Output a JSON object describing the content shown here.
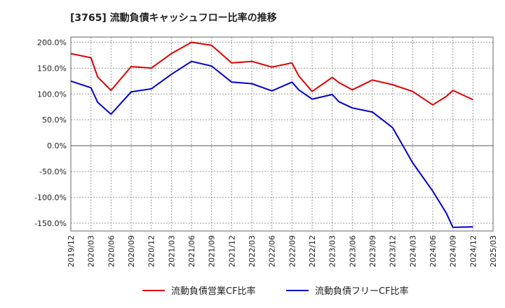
{
  "chart_data": {
    "type": "line",
    "title": "[3765]  流動負債キャッシュフロー比率の推移",
    "y_ticks": [
      "200.0%",
      "150.0%",
      "100.0%",
      "50.0%",
      "0.0%",
      "-50.0%",
      "-100.0%",
      "-150.0%"
    ],
    "y_tick_values": [
      200,
      150,
      100,
      50,
      0,
      -50,
      -100,
      -150
    ],
    "ylim": [
      -165,
      210
    ],
    "x_ticks": [
      "2019/12",
      "2020/03",
      "2020/06",
      "2020/09",
      "2020/12",
      "2021/03",
      "2021/06",
      "2021/09",
      "2021/12",
      "2022/03",
      "2022/06",
      "2022/09",
      "2022/12",
      "2023/03",
      "2023/06",
      "2023/09",
      "2023/12",
      "2024/03",
      "2024/06",
      "2024/09",
      "2024/12",
      "2025/03"
    ],
    "x": [
      "2019/12",
      "2020/03",
      "2020/04",
      "2020/06",
      "2020/09",
      "2020/12",
      "2021/03",
      "2021/06",
      "2021/09",
      "2021/12",
      "2022/03",
      "2022/06",
      "2022/09",
      "2022/10",
      "2022/12",
      "2023/03",
      "2023/04",
      "2023/06",
      "2023/09",
      "2023/12",
      "2024/03",
      "2024/06",
      "2024/08",
      "2024/09",
      "2024/12"
    ],
    "series": [
      {
        "name": "流動負債営業CF比率",
        "color": "#dd0000",
        "values": [
          178,
          170,
          133,
          107,
          153,
          150,
          178,
          200,
          194,
          160,
          163,
          152,
          160,
          135,
          105,
          132,
          122,
          108,
          127,
          118,
          105,
          79,
          95,
          107,
          89
        ]
      },
      {
        "name": "流動負債フリーCF比率",
        "color": "#0000cc",
        "values": [
          125,
          112,
          84,
          61,
          104,
          110,
          138,
          163,
          154,
          123,
          120,
          106,
          123,
          108,
          90,
          99,
          85,
          73,
          65,
          35,
          -33,
          -88,
          -130,
          -158,
          -157
        ]
      }
    ]
  }
}
